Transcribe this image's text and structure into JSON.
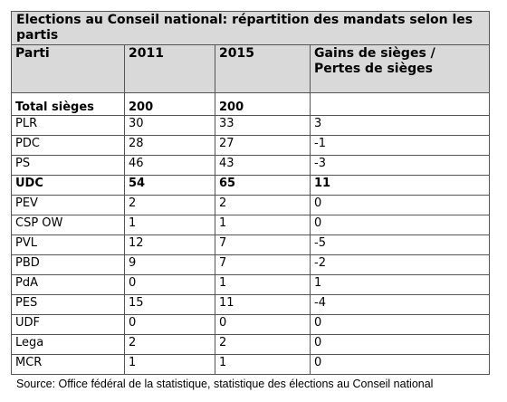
{
  "table": {
    "title": "Elections au Conseil national: répartition des mandats selon les partis",
    "header": [
      "Parti",
      "2011",
      "2015",
      "Gains de sièges / Pertes de sièges"
    ],
    "rows": [
      [
        "Total sièges",
        200,
        200
      ],
      [
        "PLR",
        30,
        33,
        3
      ],
      [
        "PDC",
        28,
        27,
        -1
      ],
      [
        "PS",
        46,
        43,
        -3
      ],
      [
        "UDC",
        54,
        65,
        11
      ],
      [
        "PEV",
        2,
        2,
        0
      ],
      [
        "CSP OW",
        1,
        1,
        0
      ],
      [
        "PVL",
        12,
        7,
        -5
      ],
      [
        "PBD",
        9,
        7,
        -2
      ],
      [
        "PdA",
        0,
        1,
        1
      ],
      [
        "PES",
        15,
        11,
        -4
      ],
      [
        "UDF",
        0,
        0,
        0
      ],
      [
        "Lega",
        2,
        2,
        0
      ],
      [
        "MCR",
        1,
        1,
        0
      ]
    ],
    "source": "Source: Office fédéral de la statistique, statistique des élections au Conseil national"
  }
}
